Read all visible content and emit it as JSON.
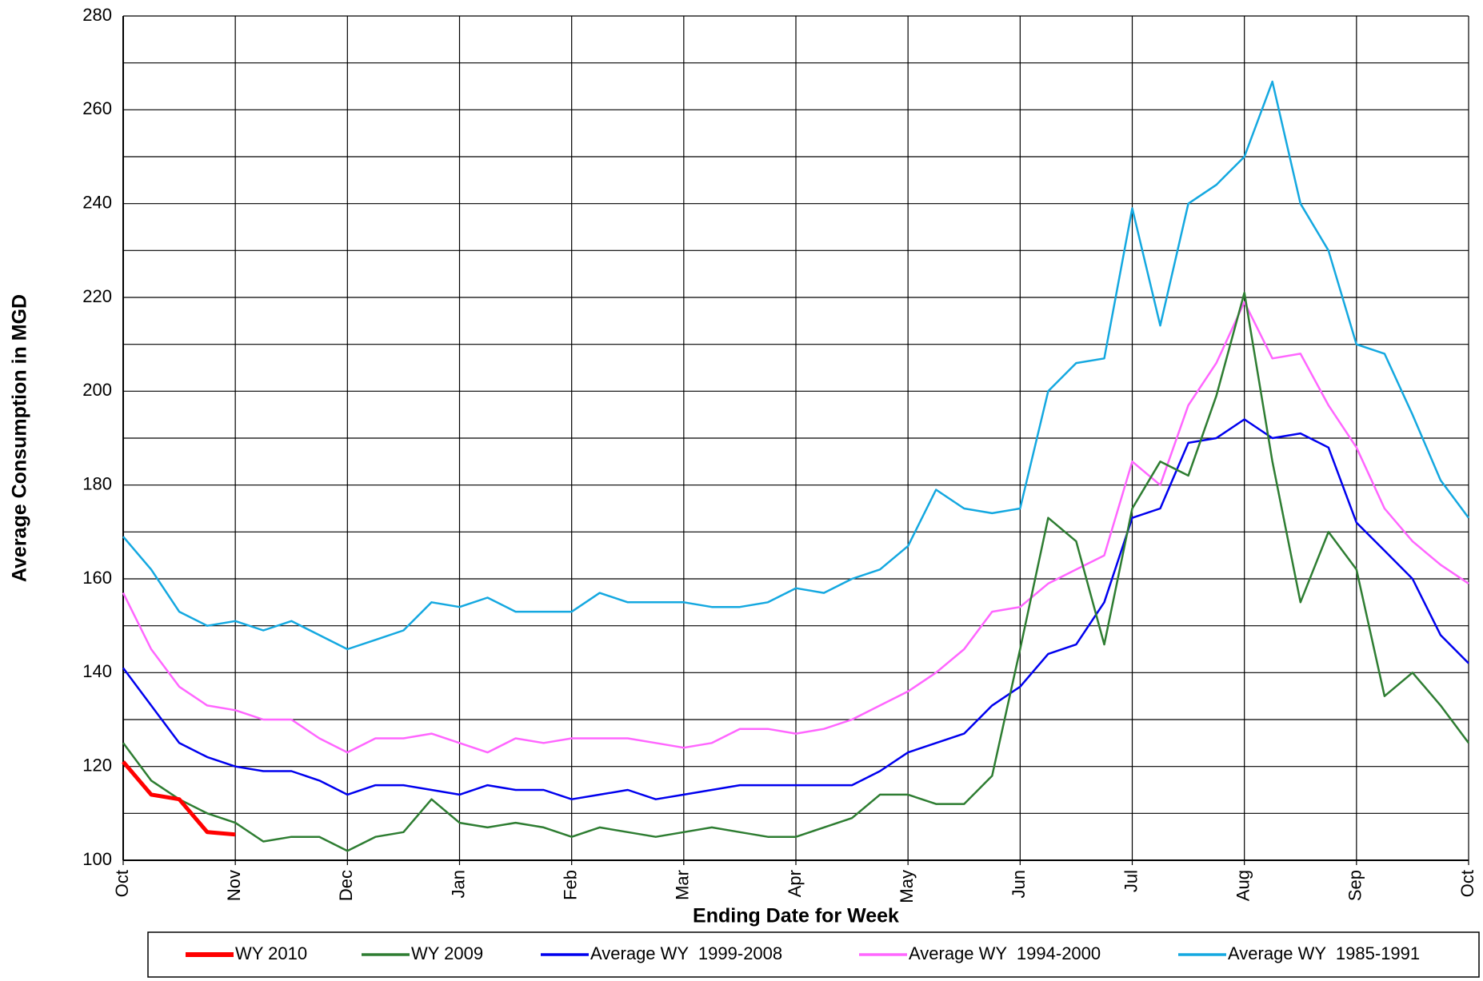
{
  "chart_data": {
    "type": "line",
    "y_label": "Average Consumption in MGD",
    "x_label": "Ending Date for Week",
    "categories": [
      "Oct",
      null,
      null,
      null,
      "Nov",
      null,
      null,
      null,
      "Dec",
      null,
      null,
      null,
      "Jan",
      null,
      null,
      null,
      "Feb",
      null,
      null,
      null,
      "Mar",
      null,
      null,
      null,
      "Apr",
      null,
      null,
      null,
      "May",
      null,
      null,
      null,
      "Jun",
      null,
      null,
      null,
      "Jul",
      null,
      null,
      null,
      "Aug",
      null,
      null,
      null,
      "Sep",
      null,
      null,
      null,
      "Oct"
    ],
    "series": [
      {
        "name": "WY 2010",
        "color": "#ff0000",
        "width": 5,
        "values": [
          121,
          114,
          113,
          106,
          105.5,
          null,
          null,
          null,
          null,
          null,
          null,
          null,
          null,
          null,
          null,
          null,
          null,
          null,
          null,
          null,
          null,
          null,
          null,
          null,
          null,
          null,
          null,
          null,
          null,
          null,
          null,
          null,
          null,
          null,
          null,
          null,
          null,
          null,
          null,
          null,
          null,
          null,
          null,
          null,
          null,
          null,
          null,
          null,
          null
        ]
      },
      {
        "name": "WY 2009",
        "color": "#2e7d32",
        "width": 2.5,
        "values": [
          125,
          117,
          113,
          110,
          108,
          104,
          105,
          105,
          102,
          105,
          106,
          113,
          108,
          107,
          108,
          107,
          105,
          107,
          106,
          105,
          106,
          107,
          106,
          105,
          105,
          107,
          109,
          114,
          114,
          112,
          112,
          118,
          145,
          173,
          168,
          146,
          175,
          185,
          182,
          199,
          221,
          185,
          155,
          170,
          162,
          135,
          140,
          133,
          125
        ]
      },
      {
        "name": "Average WY  1999-2008",
        "color": "#0000ee",
        "width": 2.5,
        "values": [
          141,
          133,
          125,
          122,
          120,
          119,
          119,
          117,
          114,
          116,
          116,
          115,
          114,
          116,
          115,
          115,
          113,
          114,
          115,
          113,
          114,
          115,
          116,
          116,
          116,
          116,
          116,
          119,
          123,
          125,
          127,
          133,
          137,
          144,
          146,
          155,
          173,
          175,
          189,
          190,
          194,
          190,
          191,
          188,
          172,
          166,
          160,
          148,
          142
        ]
      },
      {
        "name": "Average WY  1994-2000",
        "color": "#ff66ff",
        "width": 2.5,
        "values": [
          157,
          145,
          137,
          133,
          132,
          130,
          130,
          126,
          123,
          126,
          126,
          127,
          125,
          123,
          126,
          125,
          126,
          126,
          126,
          125,
          124,
          125,
          128,
          128,
          127,
          128,
          130,
          133,
          136,
          140,
          145,
          153,
          154,
          159,
          162,
          165,
          185,
          180,
          197,
          206,
          219,
          207,
          208,
          197,
          188,
          175,
          168,
          163,
          159
        ]
      },
      {
        "name": "Average WY  1985-1991",
        "color": "#14a8e0",
        "width": 2.5,
        "values": [
          169,
          162,
          153,
          150,
          151,
          149,
          151,
          148,
          145,
          147,
          149,
          155,
          154,
          156,
          153,
          153,
          153,
          157,
          155,
          155,
          155,
          154,
          154,
          155,
          158,
          157,
          160,
          162,
          167,
          179,
          175,
          174,
          175,
          200,
          206,
          207,
          239,
          214,
          240,
          244,
          250,
          266,
          240,
          230,
          210,
          208,
          195,
          181,
          173
        ]
      }
    ],
    "ylim": [
      100,
      280
    ],
    "yticks": [
      100,
      120,
      140,
      160,
      180,
      200,
      220,
      240,
      260,
      280
    ],
    "yminorticks": [
      110,
      130,
      150,
      170,
      190,
      210,
      230,
      250,
      270
    ],
    "grid": true,
    "legend": "bottom"
  }
}
